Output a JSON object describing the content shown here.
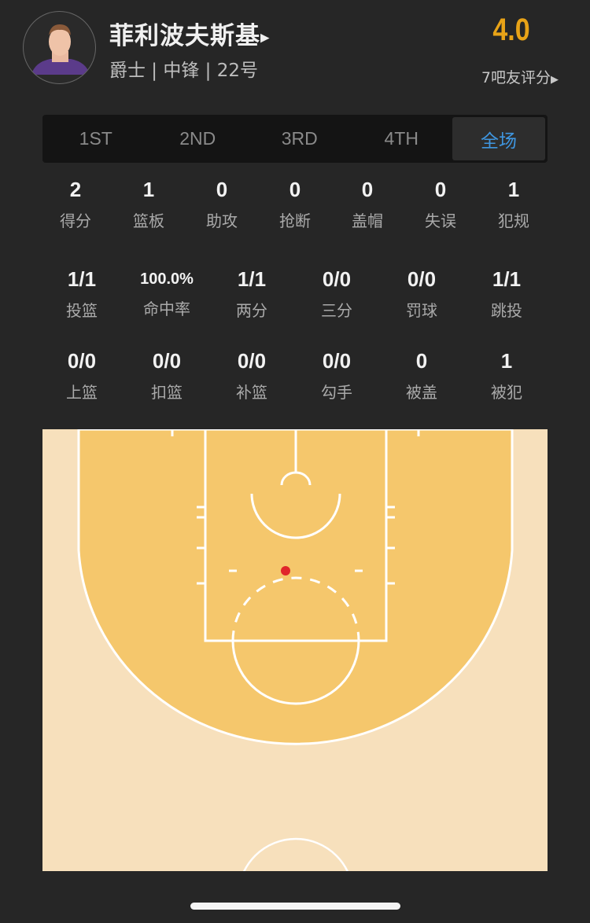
{
  "player": {
    "name": "菲利波夫斯基",
    "info": "爵士 | 中锋 | 22号",
    "rating": "4.0",
    "raters": "7吧友评分",
    "rating_color": "#e8a317"
  },
  "tabs": [
    {
      "label": "1ST",
      "active": false
    },
    {
      "label": "2ND",
      "active": false
    },
    {
      "label": "3RD",
      "active": false
    },
    {
      "label": "4TH",
      "active": false
    },
    {
      "label": "全场",
      "active": true
    }
  ],
  "stats_row1": [
    {
      "value": "2",
      "label": "得分"
    },
    {
      "value": "1",
      "label": "篮板"
    },
    {
      "value": "0",
      "label": "助攻"
    },
    {
      "value": "0",
      "label": "抢断"
    },
    {
      "value": "0",
      "label": "盖帽"
    },
    {
      "value": "0",
      "label": "失误"
    },
    {
      "value": "1",
      "label": "犯规"
    }
  ],
  "stats_row2": [
    {
      "value": "1/1",
      "label": "投篮"
    },
    {
      "value": "100.0%",
      "label": "命中率"
    },
    {
      "value": "1/1",
      "label": "两分"
    },
    {
      "value": "0/0",
      "label": "三分"
    },
    {
      "value": "0/0",
      "label": "罚球"
    },
    {
      "value": "1/1",
      "label": "跳投"
    }
  ],
  "stats_row3": [
    {
      "value": "0/0",
      "label": "上篮"
    },
    {
      "value": "0/0",
      "label": "扣篮"
    },
    {
      "value": "0/0",
      "label": "补篮"
    },
    {
      "value": "0/0",
      "label": "勾手"
    },
    {
      "value": "0",
      "label": "被盖"
    },
    {
      "value": "1",
      "label": "被犯"
    }
  ],
  "shot_chart": {
    "shots": [
      {
        "result": "made",
        "color": "#e0262b"
      }
    ],
    "court_color_inner": "#f5c76c",
    "court_color_outer": "#f7e0bc"
  }
}
